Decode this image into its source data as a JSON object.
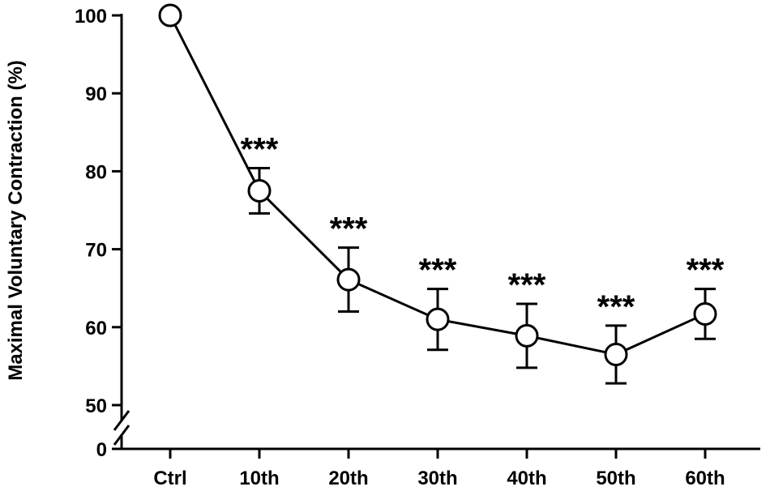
{
  "chart_data": {
    "type": "line",
    "title": "",
    "xlabel": "",
    "ylabel": "Maximal Voluntary Contraction (%)",
    "categories": [
      "Ctrl",
      "10th",
      "20th",
      "30th",
      "40th",
      "50th",
      "60th"
    ],
    "series": [
      {
        "values": [
          100,
          77.5,
          66.1,
          61.0,
          58.9,
          56.5,
          61.7
        ],
        "error": [
          0,
          2.9,
          4.1,
          3.9,
          4.1,
          3.7,
          3.2
        ],
        "significance": [
          "",
          "***",
          "***",
          "***",
          "***",
          "***",
          "***"
        ]
      }
    ],
    "y_axis": {
      "broken": true,
      "lower_segment": [
        0
      ],
      "upper_range": [
        50,
        100
      ],
      "ticks": [
        0,
        50,
        60,
        70,
        80,
        90,
        100
      ]
    },
    "grid": false,
    "legend": "none",
    "marker": "open-circle",
    "color": "#000000"
  }
}
